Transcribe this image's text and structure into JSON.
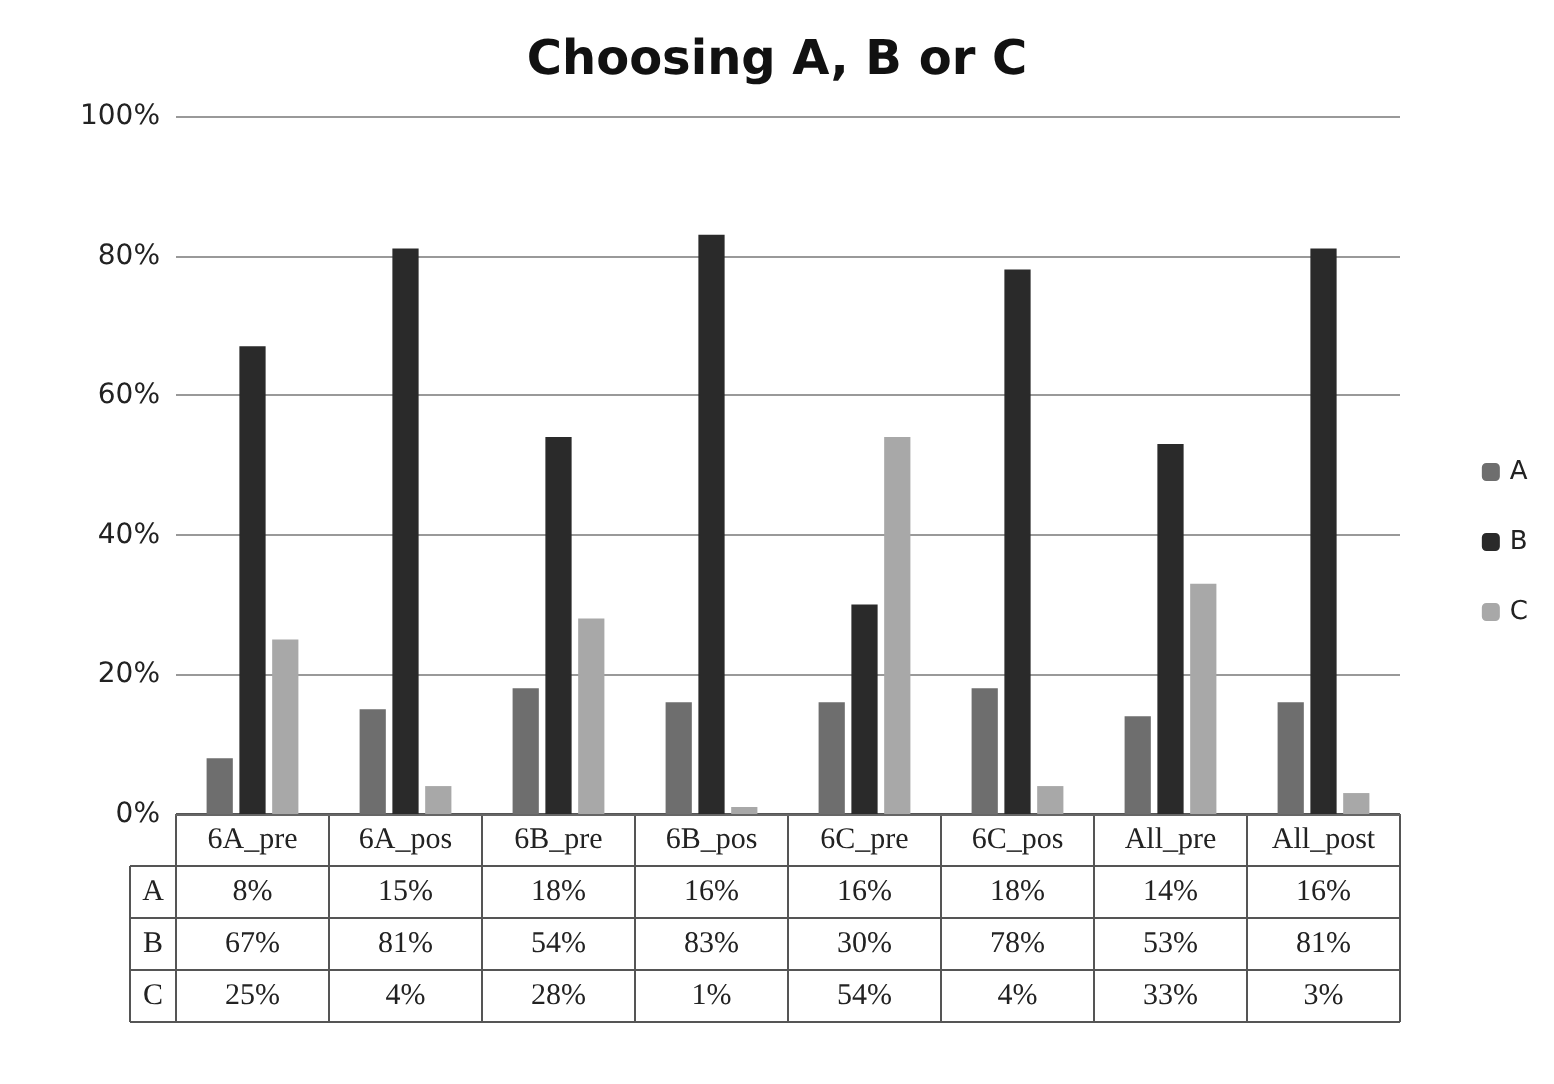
{
  "chart_data": {
    "type": "bar",
    "title": "Choosing A, B or C",
    "categories": [
      "6A_pre",
      "6A_pos",
      "6B_pre",
      "6B_pos",
      "6C_pre",
      "6C_pos",
      "All_pre",
      "All_post"
    ],
    "series": [
      {
        "name": "A",
        "color": "#6e6e6e",
        "values": [
          8,
          15,
          18,
          16,
          16,
          18,
          14,
          16
        ],
        "value_labels": [
          "8%",
          "15%",
          "18%",
          "16%",
          "16%",
          "18%",
          "14%",
          "16%"
        ]
      },
      {
        "name": "B",
        "color": "#2a2a2a",
        "values": [
          67,
          81,
          54,
          83,
          30,
          78,
          53,
          81
        ],
        "value_labels": [
          "67%",
          "81%",
          "54%",
          "83%",
          "30%",
          "78%",
          "53%",
          "81%"
        ]
      },
      {
        "name": "C",
        "color": "#a8a8a8",
        "values": [
          25,
          4,
          28,
          1,
          54,
          4,
          33,
          3
        ],
        "value_labels": [
          "25%",
          "4%",
          "28%",
          "1%",
          "54%",
          "4%",
          "33%",
          "3%"
        ]
      }
    ],
    "ylim": [
      0,
      100
    ],
    "yticks": [
      {
        "value": 0,
        "label": "0%"
      },
      {
        "value": 20,
        "label": "20%"
      },
      {
        "value": 40,
        "label": "40%"
      },
      {
        "value": 60,
        "label": "60%"
      },
      {
        "value": 80,
        "label": "80%"
      },
      {
        "value": 100,
        "label": "100%"
      }
    ],
    "grid": "y",
    "legend": "right"
  }
}
